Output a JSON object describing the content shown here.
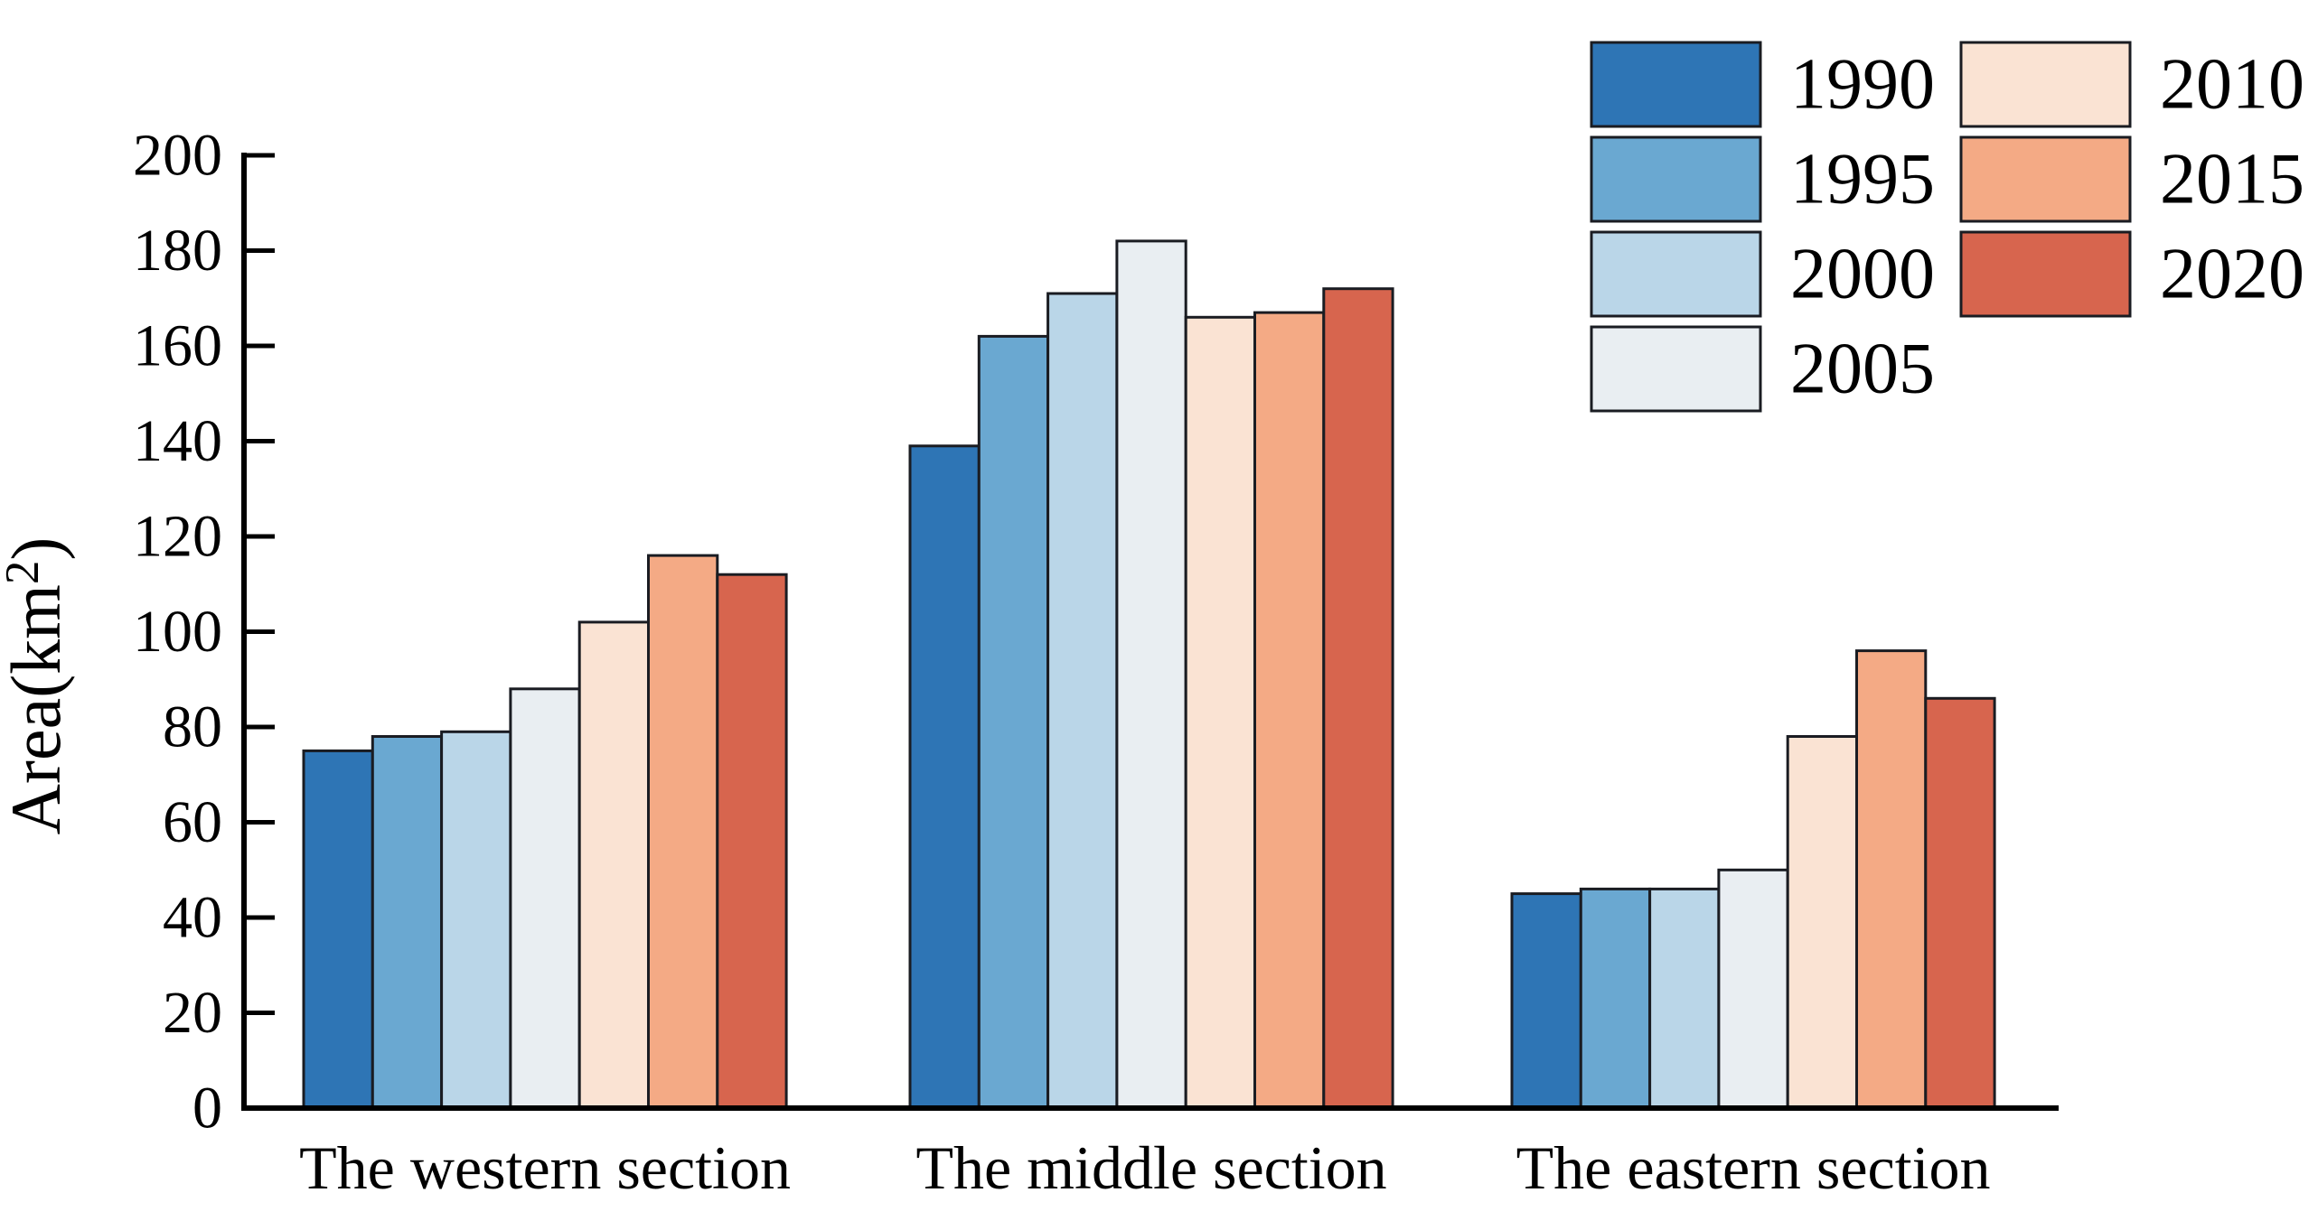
{
  "chart_data": {
    "type": "bar",
    "title": "",
    "xlabel": "",
    "ylabel": "Area(km²)",
    "categories": [
      "The western section",
      "The middle section",
      "The eastern section"
    ],
    "series": [
      {
        "name": "1990",
        "color": "#2e75b5",
        "values": [
          75,
          139,
          45
        ]
      },
      {
        "name": "1995",
        "color": "#6aa8d1",
        "values": [
          78,
          162,
          46
        ]
      },
      {
        "name": "2000",
        "color": "#bad6e8",
        "values": [
          79,
          171,
          46
        ]
      },
      {
        "name": "2005",
        "color": "#e9eef2",
        "values": [
          88,
          182,
          50
        ]
      },
      {
        "name": "2010",
        "color": "#fae3d3",
        "values": [
          102,
          166,
          78
        ]
      },
      {
        "name": "2015",
        "color": "#f4aa85",
        "values": [
          116,
          167,
          96
        ]
      },
      {
        "name": "2020",
        "color": "#d7654e",
        "values": [
          112,
          172,
          86
        ]
      }
    ],
    "ylim": [
      0,
      200
    ],
    "yticks": [
      0,
      20,
      40,
      60,
      80,
      100,
      120,
      140,
      160,
      180,
      200
    ],
    "grid": false,
    "legend_position": "top-right",
    "legend_columns": [
      [
        "1990",
        "1995",
        "2000",
        "2005"
      ],
      [
        "2010",
        "2015",
        "2020"
      ]
    ],
    "colors": {
      "axis": "#000000",
      "bar_outline": "#1a1c22",
      "background": "#ffffff",
      "text": "#000000"
    }
  }
}
